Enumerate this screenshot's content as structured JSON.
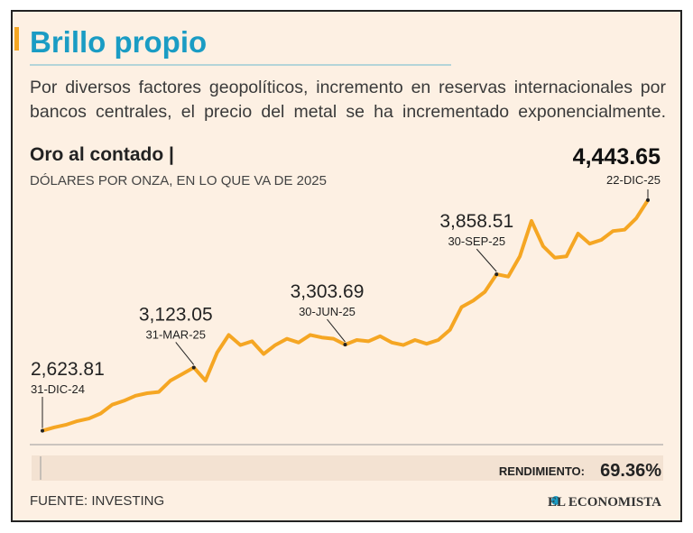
{
  "headline": "Brillo propio",
  "description": "Por diversos factores geopolíticos, incremento en reservas internacionales por bancos centrales, el precio del metal se ha incrementado exponencialmente.",
  "chart_data": {
    "type": "line",
    "title": "Oro al contado |",
    "subtitle": "DÓLARES POR ONZA, EN LO QUE VA DE 2025",
    "categories": [
      "31-DIC-24",
      null,
      null,
      null,
      null,
      null,
      null,
      null,
      null,
      null,
      null,
      null,
      null,
      "31-MAR-25",
      null,
      null,
      null,
      null,
      null,
      null,
      null,
      null,
      null,
      null,
      null,
      null,
      "30-JUN-25",
      null,
      null,
      null,
      null,
      null,
      null,
      null,
      null,
      null,
      null,
      null,
      null,
      "30-SEP-25",
      null,
      null,
      null,
      null,
      null,
      null,
      null,
      null,
      null,
      null,
      null,
      null,
      "22-DIC-25"
    ],
    "series": [
      {
        "name": "Oro al contado",
        "color": "#f5a623",
        "values": [
          2623.81,
          2650,
          2670,
          2700,
          2720,
          2760,
          2830,
          2860,
          2900,
          2920,
          2930,
          3020,
          3070,
          3123.05,
          3020,
          3240,
          3380,
          3300,
          3330,
          3230,
          3300,
          3350,
          3320,
          3380,
          3360,
          3350,
          3303.69,
          3340,
          3330,
          3370,
          3320,
          3300,
          3340,
          3310,
          3340,
          3420,
          3600,
          3650,
          3720,
          3858.51,
          3840,
          4000,
          4280,
          4080,
          3990,
          4000,
          4180,
          4100,
          4130,
          4200,
          4210,
          4300,
          4443.65
        ],
        "value_labels": [
          "2,623.81",
          null,
          null,
          null,
          null,
          null,
          null,
          null,
          null,
          null,
          null,
          null,
          null,
          "3,123.05",
          null,
          null,
          null,
          null,
          null,
          null,
          null,
          null,
          null,
          null,
          null,
          null,
          "3,303.69",
          null,
          null,
          null,
          null,
          null,
          null,
          null,
          null,
          null,
          null,
          null,
          null,
          "3,858.51",
          null,
          null,
          null,
          null,
          null,
          null,
          null,
          null,
          null,
          null,
          null,
          null,
          "4,443.65"
        ]
      }
    ],
    "ylim": [
      2550,
      4500
    ]
  },
  "footer": {
    "label": "RENDIMIENTO:",
    "value": "69.36%"
  },
  "source": "FUENTE: INVESTING",
  "brand": "EL ECONOMISTA"
}
